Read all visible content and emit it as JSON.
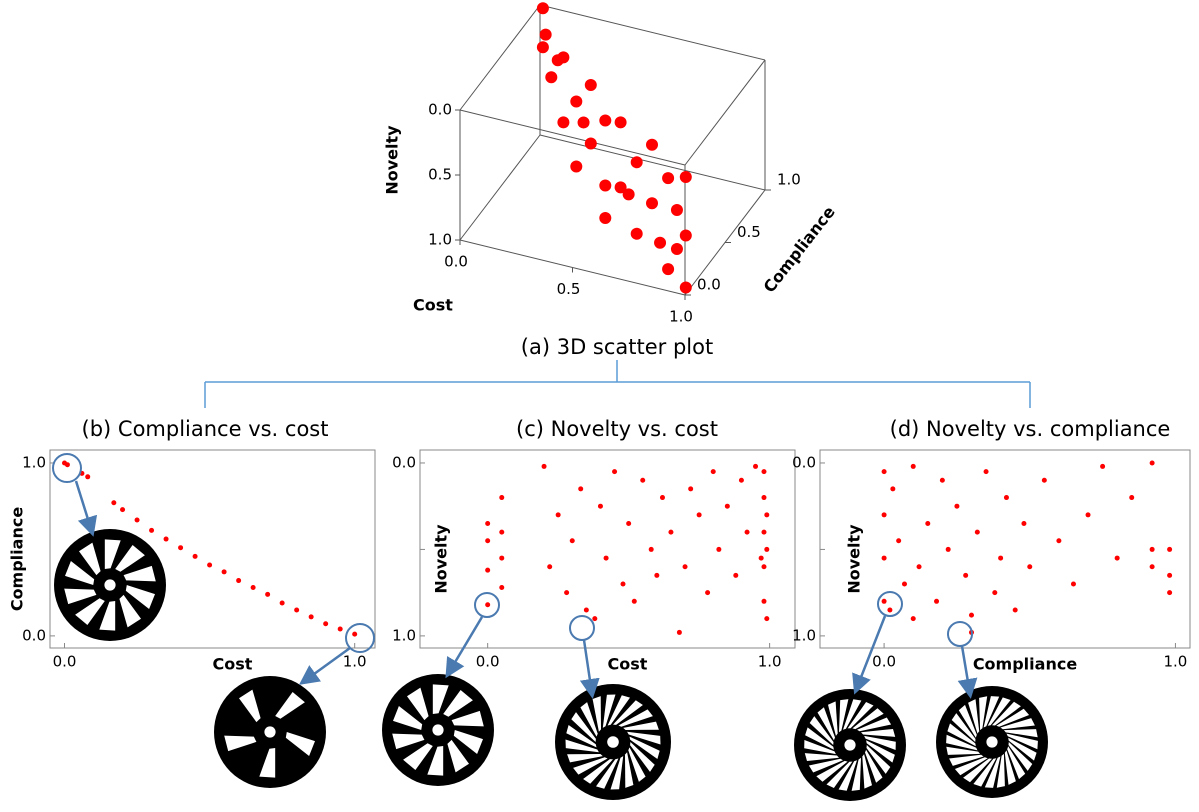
{
  "chart_data": [
    {
      "type": "scatter3d",
      "title": "(a) 3D scatter plot",
      "xlabel": "Cost",
      "ylabel": "Compliance",
      "zlabel": "Novelty",
      "color": "#ff0000",
      "xlim": [
        0,
        1
      ],
      "ylim": [
        0,
        1
      ],
      "zlim": [
        0,
        1
      ],
      "zinverted": true,
      "xticks": [
        {
          "value": 0,
          "label": "0.0"
        },
        0.5,
        {
          "value": 1,
          "label": "1.0"
        }
      ],
      "yticks": [
        {
          "value": 0,
          "label": "0.0"
        },
        0.5,
        {
          "value": 1,
          "label": "1.0"
        }
      ],
      "zticks": [
        {
          "value": 0,
          "label": "0.0"
        },
        0.5,
        {
          "value": 1,
          "label": "1.0"
        }
      ],
      "x": [
        0.02,
        0.02,
        0.05,
        0.1,
        0.15,
        0.2,
        0.2,
        0.3,
        0.3,
        0.4,
        0.4,
        0.5,
        0.5,
        0.5,
        0.6,
        0.6,
        0.7,
        0.7,
        0.8,
        0.8,
        0.9,
        0.9,
        0.95,
        0.95,
        1.0,
        1.0,
        1.0,
        0.35,
        0.65,
        0.85
      ],
      "y": [
        0.98,
        0.98,
        0.93,
        0.86,
        0.8,
        0.73,
        0.73,
        0.61,
        0.61,
        0.51,
        0.51,
        0.41,
        0.41,
        0.41,
        0.32,
        0.32,
        0.24,
        0.24,
        0.15,
        0.15,
        0.07,
        0.07,
        0.04,
        0.04,
        0.01,
        0.01,
        0.01,
        0.56,
        0.28,
        0.11
      ],
      "z": [
        0.0,
        0.3,
        0.15,
        0.4,
        0.2,
        0.1,
        0.6,
        0.3,
        0.8,
        0.05,
        0.5,
        0.2,
        0.7,
        0.95,
        0.1,
        0.6,
        0.3,
        0.85,
        0.05,
        0.5,
        0.2,
        0.9,
        0.4,
        0.7,
        0.1,
        0.55,
        0.95,
        0.4,
        0.6,
        0.75
      ]
    },
    {
      "type": "scatter",
      "title": "(b) Compliance vs. cost",
      "xlabel": "Cost",
      "ylabel": "Compliance",
      "color": "#ff0000",
      "xlim": [
        -0.05,
        1.07
      ],
      "ylim": [
        -0.07,
        1.075
      ],
      "xticks": [
        {
          "value": 0,
          "label": "0.0"
        },
        {
          "value": 1,
          "label": "1.0"
        }
      ],
      "yticks": [
        {
          "value": 0,
          "label": "0.0"
        },
        {
          "value": 1,
          "label": "1.0"
        }
      ],
      "x": [
        0.0,
        0.01,
        0.06,
        0.08,
        0.17,
        0.2,
        0.25,
        0.3,
        0.35,
        0.4,
        0.45,
        0.5,
        0.55,
        0.6,
        0.65,
        0.7,
        0.75,
        0.8,
        0.85,
        0.9,
        0.95,
        1.0
      ],
      "y": [
        1.0,
        0.99,
        0.94,
        0.92,
        0.77,
        0.73,
        0.67,
        0.61,
        0.56,
        0.51,
        0.46,
        0.41,
        0.37,
        0.32,
        0.28,
        0.24,
        0.19,
        0.15,
        0.11,
        0.07,
        0.04,
        0.01
      ]
    },
    {
      "type": "scatter",
      "title": "(c) Novelty vs. cost",
      "xlabel": "Cost",
      "ylabel": "Novelty",
      "color": "#ff0000",
      "xlim": [
        -0.24,
        1.09
      ],
      "ylim": [
        -0.075,
        1.07
      ],
      "yinverted": true,
      "xticks": [
        {
          "value": 0,
          "label": "0.0"
        },
        {
          "value": 1,
          "label": "1.0"
        }
      ],
      "yticks": [
        {
          "value": 0,
          "label": "0.0"
        },
        0.5,
        {
          "value": 1,
          "label": "1.0"
        }
      ],
      "x": [
        0.0,
        0.0,
        0.0,
        0.0,
        0.05,
        0.05,
        0.05,
        0.05,
        0.2,
        0.22,
        0.25,
        0.28,
        0.3,
        0.33,
        0.35,
        0.38,
        0.4,
        0.42,
        0.45,
        0.48,
        0.5,
        0.52,
        0.55,
        0.58,
        0.6,
        0.62,
        0.65,
        0.68,
        0.7,
        0.72,
        0.75,
        0.78,
        0.8,
        0.82,
        0.85,
        0.88,
        0.9,
        0.92,
        0.95,
        0.97,
        0.98,
        0.98,
        0.98,
        0.98,
        0.98,
        0.99,
        0.99,
        0.99
      ],
      "y": [
        0.35,
        0.45,
        0.62,
        0.82,
        0.2,
        0.4,
        0.55,
        0.72,
        0.02,
        0.6,
        0.3,
        0.75,
        0.45,
        0.15,
        0.85,
        0.9,
        0.25,
        0.55,
        0.05,
        0.7,
        0.35,
        0.8,
        0.1,
        0.5,
        0.65,
        0.2,
        0.4,
        0.98,
        0.6,
        0.15,
        0.3,
        0.75,
        0.05,
        0.5,
        0.25,
        0.65,
        0.1,
        0.4,
        0.02,
        0.55,
        0.05,
        0.2,
        0.4,
        0.6,
        0.8,
        0.3,
        0.5,
        0.9
      ]
    },
    {
      "type": "scatter",
      "title": "(d) Novelty vs. compliance",
      "xlabel": "Compliance",
      "ylabel": "Novelty",
      "color": "#ff0000",
      "xlim": [
        -0.22,
        1.05
      ],
      "ylim": [
        -0.075,
        1.07
      ],
      "yinverted": true,
      "xticks": [
        {
          "value": 0,
          "label": "0.0"
        },
        {
          "value": 1,
          "label": "1.0"
        }
      ],
      "yticks": [
        {
          "value": 0,
          "label": "0.0"
        },
        0.5,
        {
          "value": 1,
          "label": "1.0"
        }
      ],
      "x": [
        0.0,
        0.0,
        0.0,
        0.0,
        0.02,
        0.03,
        0.05,
        0.07,
        0.1,
        0.12,
        0.15,
        0.18,
        0.2,
        0.22,
        0.25,
        0.28,
        0.3,
        0.32,
        0.35,
        0.38,
        0.4,
        0.42,
        0.45,
        0.48,
        0.5,
        0.55,
        0.6,
        0.65,
        0.7,
        0.75,
        0.8,
        0.85,
        0.92,
        0.92,
        0.92,
        0.98,
        0.98,
        0.98,
        0.3,
        0.1
      ],
      "y": [
        0.05,
        0.3,
        0.55,
        0.8,
        0.85,
        0.15,
        0.45,
        0.7,
        0.02,
        0.6,
        0.35,
        0.8,
        0.1,
        0.5,
        0.25,
        0.65,
        0.98,
        0.4,
        0.05,
        0.75,
        0.55,
        0.2,
        0.85,
        0.35,
        0.6,
        0.1,
        0.45,
        0.7,
        0.3,
        0.02,
        0.55,
        0.2,
        0.0,
        0.5,
        0.6,
        0.5,
        0.65,
        0.75,
        0.88,
        0.9
      ]
    }
  ]
}
